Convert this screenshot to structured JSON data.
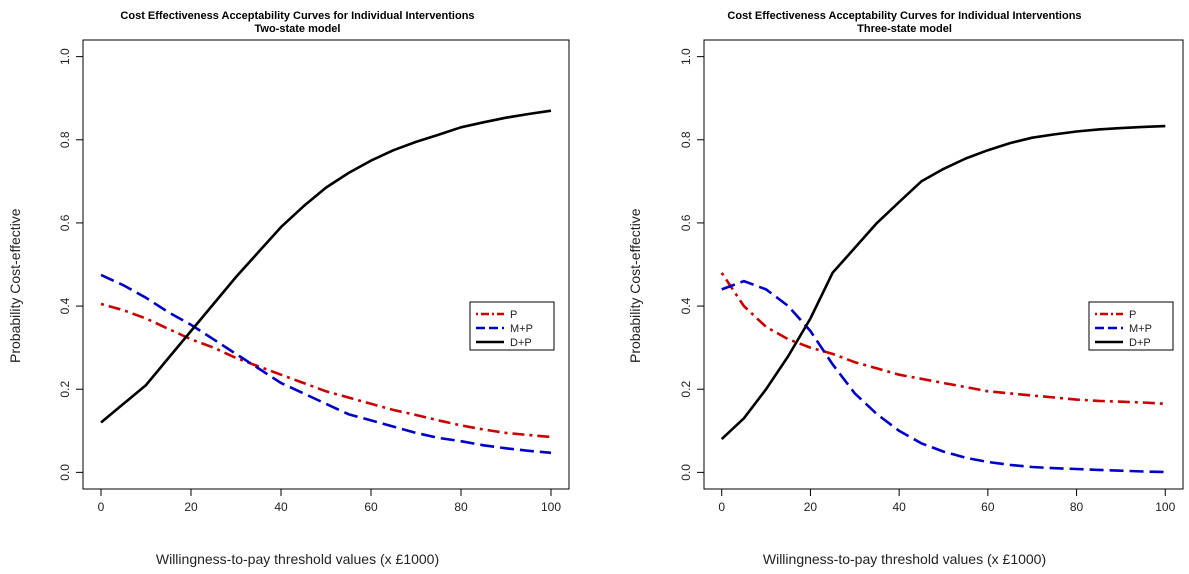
{
  "chart_data": [
    {
      "type": "line",
      "title": "Cost Effectiveness Acceptability Curves for Individual Interventions",
      "subtitle": "Two-state model",
      "xlabel": "Willingness-to-pay threshold values (x £1000)",
      "ylabel": "Probability Cost-effective",
      "xlim": [
        0,
        100
      ],
      "ylim": [
        0,
        1
      ],
      "xticks": [
        "0",
        "20",
        "40",
        "60",
        "80",
        "100"
      ],
      "yticks": [
        "0.0",
        "0.2",
        "0.4",
        "0.6",
        "0.8",
        "1.0"
      ],
      "grid": false,
      "legend_position": "right",
      "x": [
        0,
        5,
        10,
        15,
        20,
        25,
        30,
        35,
        40,
        45,
        50,
        55,
        60,
        65,
        70,
        75,
        80,
        85,
        90,
        95,
        100
      ],
      "series": [
        {
          "name": "P",
          "color": "#cc0000",
          "dash": "dotdash",
          "values": [
            0.405,
            0.39,
            0.37,
            0.345,
            0.32,
            0.3,
            0.275,
            0.255,
            0.235,
            0.215,
            0.195,
            0.18,
            0.165,
            0.15,
            0.138,
            0.125,
            0.113,
            0.103,
            0.095,
            0.09,
            0.085
          ]
        },
        {
          "name": "M+P",
          "color": "#0000cc",
          "dash": "dashed",
          "values": [
            0.475,
            0.45,
            0.42,
            0.385,
            0.355,
            0.32,
            0.285,
            0.25,
            0.215,
            0.19,
            0.165,
            0.14,
            0.125,
            0.11,
            0.095,
            0.083,
            0.075,
            0.065,
            0.058,
            0.052,
            0.047
          ]
        },
        {
          "name": "D+P",
          "color": "#000000",
          "dash": "solid",
          "values": [
            0.12,
            0.165,
            0.21,
            0.275,
            0.34,
            0.405,
            0.47,
            0.53,
            0.59,
            0.64,
            0.685,
            0.72,
            0.75,
            0.775,
            0.795,
            0.812,
            0.83,
            0.842,
            0.853,
            0.862,
            0.87
          ]
        }
      ]
    },
    {
      "type": "line",
      "title": "Cost Effectiveness Acceptability Curves for Individual Interventions",
      "subtitle": "Three-state model",
      "xlabel": "Willingness-to-pay threshold values (x £1000)",
      "ylabel": "Probability Cost-effective",
      "xlim": [
        0,
        100
      ],
      "ylim": [
        0,
        1
      ],
      "xticks": [
        "0",
        "20",
        "40",
        "60",
        "80",
        "100"
      ],
      "yticks": [
        "0.0",
        "0.2",
        "0.4",
        "0.6",
        "0.8",
        "1.0"
      ],
      "grid": false,
      "legend_position": "right",
      "x": [
        0,
        5,
        10,
        15,
        20,
        25,
        30,
        35,
        40,
        45,
        50,
        55,
        60,
        65,
        70,
        75,
        80,
        85,
        90,
        95,
        100
      ],
      "series": [
        {
          "name": "P",
          "color": "#cc0000",
          "dash": "dotdash",
          "values": [
            0.48,
            0.4,
            0.35,
            0.32,
            0.3,
            0.285,
            0.265,
            0.25,
            0.235,
            0.225,
            0.215,
            0.205,
            0.195,
            0.19,
            0.185,
            0.18,
            0.175,
            0.172,
            0.17,
            0.168,
            0.165
          ]
        },
        {
          "name": "M+P",
          "color": "#0000cc",
          "dash": "dashed",
          "values": [
            0.44,
            0.46,
            0.44,
            0.4,
            0.34,
            0.26,
            0.19,
            0.14,
            0.1,
            0.07,
            0.05,
            0.035,
            0.025,
            0.018,
            0.013,
            0.01,
            0.008,
            0.006,
            0.004,
            0.002,
            0.001
          ]
        },
        {
          "name": "D+P",
          "color": "#000000",
          "dash": "solid",
          "values": [
            0.08,
            0.13,
            0.2,
            0.28,
            0.37,
            0.48,
            0.54,
            0.6,
            0.65,
            0.7,
            0.73,
            0.755,
            0.775,
            0.792,
            0.805,
            0.813,
            0.82,
            0.825,
            0.828,
            0.831,
            0.833
          ]
        }
      ]
    }
  ]
}
